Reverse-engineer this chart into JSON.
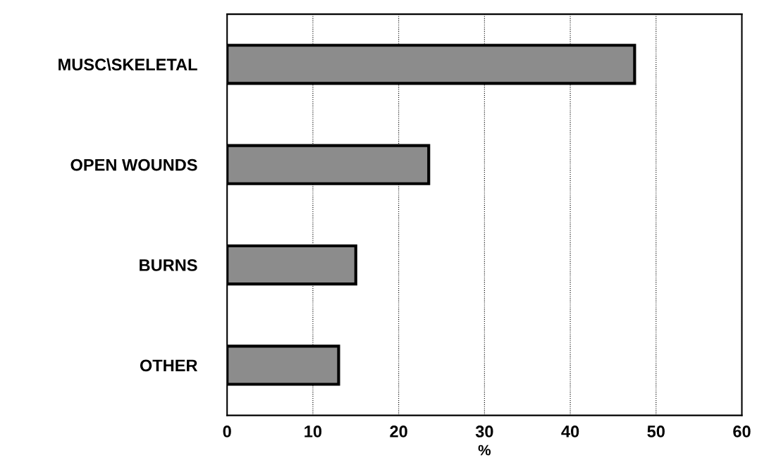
{
  "chart_data": {
    "type": "bar",
    "orientation": "horizontal",
    "xlabel": "%",
    "categories": [
      "MUSC\\SKELETAL",
      "OPEN WOUNDS",
      "BURNS",
      "OTHER"
    ],
    "values": [
      47.5,
      23.5,
      15,
      13
    ],
    "color": "#8c8c8c",
    "xlim": [
      0,
      60
    ],
    "xticks": [
      0,
      10,
      20,
      30,
      40,
      50,
      60
    ],
    "grid": "x"
  }
}
